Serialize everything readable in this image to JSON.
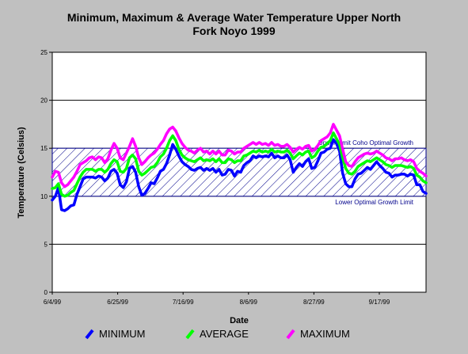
{
  "chart_data": {
    "type": "line",
    "title": "Minimum, Maximum & Average Water Temperature Upper North Fork Noyo 1999",
    "title_lines": [
      "Minimum, Maximum & Average Water Temperature Upper North",
      "Fork Noyo 1999"
    ],
    "xlabel": "Date",
    "ylabel": "Temperature (Celsius)",
    "ylim": [
      0,
      25
    ],
    "y_ticks": [
      "0",
      "5",
      "10",
      "15",
      "20",
      "25"
    ],
    "x_ticks": [
      "6/4/99",
      "6/25/99",
      "7/16/99",
      "8/6/99",
      "8/27/99",
      "9/17/99"
    ],
    "x_days": 120,
    "grid": true,
    "legend_position": "bottom",
    "optimal_band": {
      "upper": 15,
      "lower": 10,
      "upper_label": "Upper Limit Coho Optimal Growth",
      "lower_label": "Lower Optimal Growth Limit",
      "color": "#00008b"
    },
    "series": [
      {
        "name": "MINIMUM",
        "color": "#0000ff",
        "values": [
          9.6,
          10.0,
          10.9,
          8.6,
          8.5,
          8.7,
          9.0,
          9.1,
          10.2,
          11.0,
          11.8,
          12.0,
          12.0,
          12.0,
          11.9,
          12.1,
          12.0,
          11.6,
          11.9,
          12.6,
          12.8,
          12.4,
          11.2,
          10.9,
          11.5,
          12.9,
          13.1,
          12.5,
          11.0,
          10.1,
          10.3,
          10.8,
          11.4,
          11.3,
          11.9,
          12.6,
          12.8,
          13.4,
          14.3,
          15.4,
          14.9,
          14.2,
          13.6,
          13.3,
          13.1,
          12.8,
          12.7,
          12.9,
          13.0,
          12.7,
          12.9,
          12.7,
          12.9,
          12.5,
          12.8,
          12.2,
          12.3,
          12.8,
          12.7,
          12.1,
          12.6,
          12.5,
          13.2,
          13.5,
          13.7,
          14.2,
          14.0,
          14.2,
          14.1,
          14.2,
          14.1,
          14.5,
          14.0,
          14.2,
          14.0,
          14.0,
          14.3,
          13.8,
          12.5,
          13.0,
          13.4,
          13.1,
          13.6,
          13.9,
          12.9,
          13.0,
          13.7,
          14.5,
          14.6,
          14.9,
          15.0,
          15.9,
          15.5,
          14.7,
          12.4,
          11.3,
          11.0,
          11.0,
          11.8,
          12.3,
          12.4,
          12.7,
          13.0,
          12.8,
          13.2,
          13.6,
          13.2,
          12.9,
          12.5,
          12.4,
          12.0,
          12.2,
          12.2,
          12.3,
          12.3,
          12.1,
          12.3,
          12.2,
          11.2,
          11.2,
          10.5,
          10.3
        ]
      },
      {
        "name": "AVERAGE",
        "color": "#00ff00",
        "values": [
          10.8,
          10.9,
          11.3,
          10.2,
          10.0,
          10.1,
          10.4,
          10.6,
          11.3,
          12.0,
          12.5,
          12.8,
          12.8,
          12.8,
          12.6,
          12.8,
          12.8,
          12.5,
          12.8,
          13.4,
          13.8,
          13.6,
          12.6,
          12.5,
          12.9,
          14.0,
          14.3,
          13.9,
          12.6,
          12.2,
          12.4,
          12.7,
          13.0,
          13.1,
          13.5,
          14.1,
          14.4,
          15.0,
          15.8,
          16.3,
          15.8,
          14.9,
          14.3,
          14.0,
          13.8,
          13.7,
          13.6,
          13.8,
          14.0,
          13.7,
          13.8,
          13.7,
          13.9,
          13.6,
          13.9,
          13.5,
          13.5,
          13.9,
          13.8,
          13.5,
          13.7,
          13.7,
          14.2,
          14.3,
          14.5,
          14.7,
          14.6,
          14.8,
          14.6,
          14.7,
          14.6,
          14.9,
          14.6,
          14.7,
          14.6,
          14.6,
          14.8,
          14.5,
          13.9,
          14.2,
          14.5,
          14.3,
          14.6,
          14.7,
          14.0,
          14.2,
          14.7,
          15.1,
          15.2,
          15.5,
          15.8,
          16.6,
          16.0,
          15.4,
          14.0,
          12.9,
          12.4,
          12.3,
          12.6,
          13.1,
          13.3,
          13.5,
          13.7,
          13.6,
          13.8,
          14.0,
          13.8,
          13.6,
          13.3,
          13.2,
          13.0,
          13.2,
          13.2,
          13.2,
          13.1,
          13.0,
          13.1,
          12.9,
          12.2,
          12.0,
          11.6,
          11.4
        ]
      },
      {
        "name": "MAXIMUM",
        "color": "#ff00ff",
        "values": [
          12.0,
          12.6,
          12.5,
          11.4,
          11.0,
          11.2,
          11.6,
          12.0,
          12.6,
          13.3,
          13.5,
          13.7,
          14.0,
          14.1,
          13.8,
          14.1,
          14.0,
          13.5,
          13.9,
          14.8,
          15.5,
          15.0,
          14.0,
          13.8,
          14.5,
          15.2,
          16.0,
          15.2,
          14.0,
          13.3,
          13.6,
          14.0,
          14.3,
          14.5,
          14.9,
          15.4,
          15.8,
          16.5,
          17.0,
          17.2,
          16.8,
          16.1,
          15.5,
          15.1,
          14.8,
          14.7,
          14.5,
          14.8,
          15.0,
          14.6,
          14.7,
          14.4,
          14.7,
          14.4,
          14.7,
          14.3,
          14.3,
          14.8,
          14.7,
          14.4,
          14.6,
          14.6,
          15.0,
          15.2,
          15.4,
          15.6,
          15.4,
          15.6,
          15.4,
          15.5,
          15.3,
          15.6,
          15.3,
          15.4,
          15.2,
          15.2,
          15.4,
          15.1,
          14.6,
          14.9,
          15.1,
          14.9,
          15.2,
          15.3,
          14.7,
          14.9,
          15.3,
          15.8,
          16.0,
          16.2,
          16.6,
          17.5,
          16.9,
          16.3,
          14.9,
          13.6,
          13.2,
          13.1,
          13.6,
          14.0,
          14.2,
          14.4,
          14.5,
          14.4,
          14.5,
          14.7,
          14.5,
          14.3,
          14.0,
          13.9,
          13.7,
          13.9,
          13.9,
          14.0,
          13.8,
          13.7,
          13.8,
          13.6,
          12.9,
          12.6,
          12.4,
          12.1
        ]
      }
    ]
  }
}
